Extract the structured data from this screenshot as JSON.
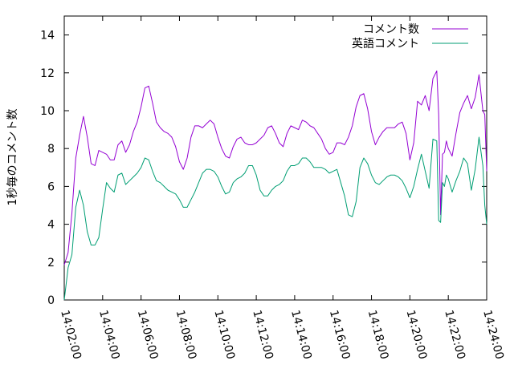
{
  "chart_data": {
    "type": "line",
    "title": "",
    "xlabel": "",
    "ylabel": "1秒毎のコメント数",
    "xlim": [
      0,
      1320
    ],
    "ylim": [
      0,
      15
    ],
    "x_ticks": [
      {
        "t": 0,
        "label": "14:02:00"
      },
      {
        "t": 120,
        "label": "14:04:00"
      },
      {
        "t": 240,
        "label": "14:06:00"
      },
      {
        "t": 360,
        "label": "14:08:00"
      },
      {
        "t": 480,
        "label": "14:10:00"
      },
      {
        "t": 600,
        "label": "14:12:00"
      },
      {
        "t": 720,
        "label": "14:14:00"
      },
      {
        "t": 840,
        "label": "14:16:00"
      },
      {
        "t": 960,
        "label": "14:18:00"
      },
      {
        "t": 1080,
        "label": "14:20:00"
      },
      {
        "t": 1200,
        "label": "14:22:00"
      },
      {
        "t": 1320,
        "label": "14:24:00"
      }
    ],
    "y_ticks": [
      "0",
      "2",
      "4",
      "6",
      "8",
      "10",
      "12",
      "14"
    ],
    "grid": false,
    "legend": "top-right",
    "x_unit": "seconds from 14:02:00",
    "series": [
      {
        "name": "コメント数",
        "color": "#9400d3",
        "points": [
          [
            0,
            1.85
          ],
          [
            12,
            2.5
          ],
          [
            24,
            4.6
          ],
          [
            36,
            7.5
          ],
          [
            48,
            8.7
          ],
          [
            60,
            9.7
          ],
          [
            72,
            8.6
          ],
          [
            84,
            7.2
          ],
          [
            96,
            7.1
          ],
          [
            108,
            7.9
          ],
          [
            120,
            7.8
          ],
          [
            132,
            7.7
          ],
          [
            144,
            7.4
          ],
          [
            156,
            7.4
          ],
          [
            168,
            8.2
          ],
          [
            180,
            8.4
          ],
          [
            192,
            7.8
          ],
          [
            204,
            8.2
          ],
          [
            216,
            8.9
          ],
          [
            228,
            9.4
          ],
          [
            240,
            10.2
          ],
          [
            252,
            11.2
          ],
          [
            264,
            11.3
          ],
          [
            276,
            10.4
          ],
          [
            288,
            9.4
          ],
          [
            300,
            9.1
          ],
          [
            312,
            8.9
          ],
          [
            324,
            8.8
          ],
          [
            336,
            8.6
          ],
          [
            348,
            8.1
          ],
          [
            360,
            7.3
          ],
          [
            372,
            6.9
          ],
          [
            384,
            7.5
          ],
          [
            396,
            8.6
          ],
          [
            408,
            9.2
          ],
          [
            420,
            9.2
          ],
          [
            432,
            9.1
          ],
          [
            444,
            9.3
          ],
          [
            456,
            9.5
          ],
          [
            468,
            9.3
          ],
          [
            480,
            8.6
          ],
          [
            492,
            8.0
          ],
          [
            504,
            7.6
          ],
          [
            516,
            7.5
          ],
          [
            528,
            8.1
          ],
          [
            540,
            8.5
          ],
          [
            552,
            8.6
          ],
          [
            564,
            8.3
          ],
          [
            576,
            8.2
          ],
          [
            588,
            8.2
          ],
          [
            600,
            8.3
          ],
          [
            612,
            8.5
          ],
          [
            624,
            8.7
          ],
          [
            636,
            9.1
          ],
          [
            648,
            9.2
          ],
          [
            660,
            8.8
          ],
          [
            672,
            8.3
          ],
          [
            684,
            8.1
          ],
          [
            696,
            8.8
          ],
          [
            708,
            9.2
          ],
          [
            720,
            9.1
          ],
          [
            732,
            9.0
          ],
          [
            744,
            9.5
          ],
          [
            756,
            9.4
          ],
          [
            768,
            9.2
          ],
          [
            780,
            9.1
          ],
          [
            792,
            8.8
          ],
          [
            804,
            8.5
          ],
          [
            816,
            8.0
          ],
          [
            828,
            7.7
          ],
          [
            840,
            7.8
          ],
          [
            852,
            8.3
          ],
          [
            864,
            8.3
          ],
          [
            876,
            8.2
          ],
          [
            888,
            8.6
          ],
          [
            900,
            9.2
          ],
          [
            912,
            10.2
          ],
          [
            924,
            10.8
          ],
          [
            936,
            10.9
          ],
          [
            948,
            10.1
          ],
          [
            960,
            8.9
          ],
          [
            972,
            8.2
          ],
          [
            984,
            8.6
          ],
          [
            996,
            8.9
          ],
          [
            1008,
            9.1
          ],
          [
            1020,
            9.1
          ],
          [
            1032,
            9.1
          ],
          [
            1044,
            9.3
          ],
          [
            1056,
            9.4
          ],
          [
            1068,
            8.8
          ],
          [
            1080,
            7.4
          ],
          [
            1092,
            8.3
          ],
          [
            1104,
            10.5
          ],
          [
            1116,
            10.3
          ],
          [
            1128,
            10.8
          ],
          [
            1140,
            10.0
          ],
          [
            1152,
            11.7
          ],
          [
            1164,
            12.1
          ],
          [
            1170,
            9.8
          ],
          [
            1176,
            4.5
          ],
          [
            1182,
            7.7
          ],
          [
            1188,
            7.8
          ],
          [
            1194,
            8.4
          ],
          [
            1200,
            8.0
          ],
          [
            1212,
            7.6
          ],
          [
            1224,
            8.8
          ],
          [
            1236,
            9.9
          ],
          [
            1248,
            10.4
          ],
          [
            1260,
            10.8
          ],
          [
            1272,
            10.1
          ],
          [
            1284,
            10.7
          ],
          [
            1296,
            11.9
          ],
          [
            1308,
            10.0
          ],
          [
            1314,
            9.8
          ],
          [
            1320,
            6.8
          ]
        ]
      },
      {
        "name": "英語コメント",
        "color": "#009e73",
        "points": [
          [
            0,
            0.0
          ],
          [
            12,
            1.7
          ],
          [
            24,
            2.4
          ],
          [
            36,
            4.9
          ],
          [
            48,
            5.8
          ],
          [
            60,
            5.0
          ],
          [
            72,
            3.6
          ],
          [
            84,
            2.9
          ],
          [
            96,
            2.9
          ],
          [
            108,
            3.3
          ],
          [
            120,
            4.8
          ],
          [
            132,
            6.2
          ],
          [
            144,
            5.9
          ],
          [
            156,
            5.7
          ],
          [
            168,
            6.6
          ],
          [
            180,
            6.7
          ],
          [
            192,
            6.1
          ],
          [
            204,
            6.3
          ],
          [
            216,
            6.5
          ],
          [
            228,
            6.7
          ],
          [
            240,
            7.0
          ],
          [
            252,
            7.5
          ],
          [
            264,
            7.4
          ],
          [
            276,
            6.8
          ],
          [
            288,
            6.3
          ],
          [
            300,
            6.2
          ],
          [
            312,
            6.0
          ],
          [
            324,
            5.8
          ],
          [
            336,
            5.7
          ],
          [
            348,
            5.6
          ],
          [
            360,
            5.3
          ],
          [
            372,
            4.9
          ],
          [
            384,
            4.9
          ],
          [
            396,
            5.3
          ],
          [
            408,
            5.7
          ],
          [
            420,
            6.2
          ],
          [
            432,
            6.7
          ],
          [
            444,
            6.9
          ],
          [
            456,
            6.9
          ],
          [
            468,
            6.8
          ],
          [
            480,
            6.5
          ],
          [
            492,
            6.0
          ],
          [
            504,
            5.6
          ],
          [
            516,
            5.7
          ],
          [
            528,
            6.2
          ],
          [
            540,
            6.4
          ],
          [
            552,
            6.5
          ],
          [
            564,
            6.7
          ],
          [
            576,
            7.1
          ],
          [
            588,
            7.1
          ],
          [
            600,
            6.6
          ],
          [
            612,
            5.8
          ],
          [
            624,
            5.5
          ],
          [
            636,
            5.5
          ],
          [
            648,
            5.8
          ],
          [
            660,
            6.0
          ],
          [
            672,
            6.1
          ],
          [
            684,
            6.3
          ],
          [
            696,
            6.8
          ],
          [
            708,
            7.1
          ],
          [
            720,
            7.1
          ],
          [
            732,
            7.2
          ],
          [
            744,
            7.5
          ],
          [
            756,
            7.5
          ],
          [
            768,
            7.3
          ],
          [
            780,
            7.0
          ],
          [
            792,
            7.0
          ],
          [
            804,
            7.0
          ],
          [
            816,
            6.9
          ],
          [
            828,
            6.7
          ],
          [
            840,
            6.8
          ],
          [
            852,
            6.9
          ],
          [
            864,
            6.2
          ],
          [
            876,
            5.5
          ],
          [
            888,
            4.5
          ],
          [
            900,
            4.4
          ],
          [
            912,
            5.2
          ],
          [
            924,
            7.0
          ],
          [
            936,
            7.5
          ],
          [
            948,
            7.2
          ],
          [
            960,
            6.6
          ],
          [
            972,
            6.2
          ],
          [
            984,
            6.1
          ],
          [
            996,
            6.3
          ],
          [
            1008,
            6.5
          ],
          [
            1020,
            6.6
          ],
          [
            1032,
            6.6
          ],
          [
            1044,
            6.5
          ],
          [
            1056,
            6.3
          ],
          [
            1068,
            5.9
          ],
          [
            1080,
            5.4
          ],
          [
            1092,
            6.0
          ],
          [
            1104,
            6.9
          ],
          [
            1116,
            7.7
          ],
          [
            1128,
            6.8
          ],
          [
            1140,
            5.9
          ],
          [
            1152,
            8.5
          ],
          [
            1164,
            8.4
          ],
          [
            1170,
            4.2
          ],
          [
            1176,
            4.1
          ],
          [
            1182,
            6.2
          ],
          [
            1188,
            6.0
          ],
          [
            1194,
            6.6
          ],
          [
            1200,
            6.4
          ],
          [
            1212,
            5.7
          ],
          [
            1224,
            6.3
          ],
          [
            1236,
            6.8
          ],
          [
            1248,
            7.5
          ],
          [
            1260,
            7.2
          ],
          [
            1272,
            5.8
          ],
          [
            1284,
            6.9
          ],
          [
            1296,
            8.6
          ],
          [
            1308,
            7.1
          ],
          [
            1314,
            5.0
          ],
          [
            1320,
            4.0
          ]
        ]
      }
    ]
  }
}
